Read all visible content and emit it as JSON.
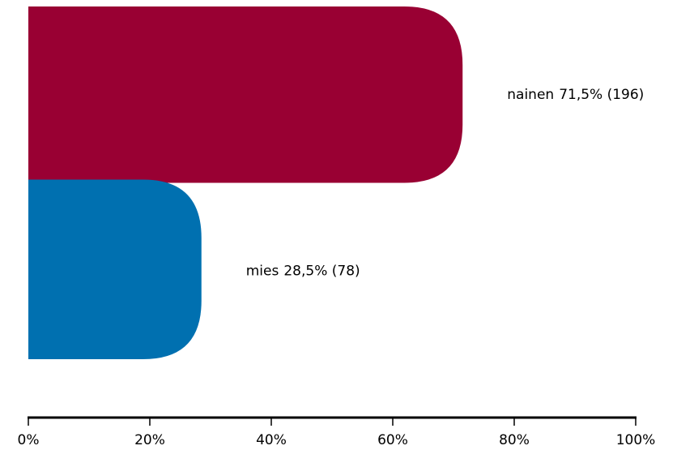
{
  "chart_data": {
    "type": "bar",
    "orientation": "horizontal",
    "categories": [
      "nainen",
      "mies"
    ],
    "values": [
      71.5,
      28.5
    ],
    "value_labels": [
      "71,5% (196)",
      "28,5% (78)"
    ],
    "colors": [
      "#990033",
      "#0070b0"
    ],
    "xlim": [
      0,
      100
    ],
    "xticks": [
      {
        "value": 0,
        "label": "0%"
      },
      {
        "value": 20,
        "label": "20%"
      },
      {
        "value": 40,
        "label": "40%"
      },
      {
        "value": 60,
        "label": "60%"
      },
      {
        "value": 80,
        "label": "80%"
      },
      {
        "value": 100,
        "label": "100%"
      }
    ]
  }
}
